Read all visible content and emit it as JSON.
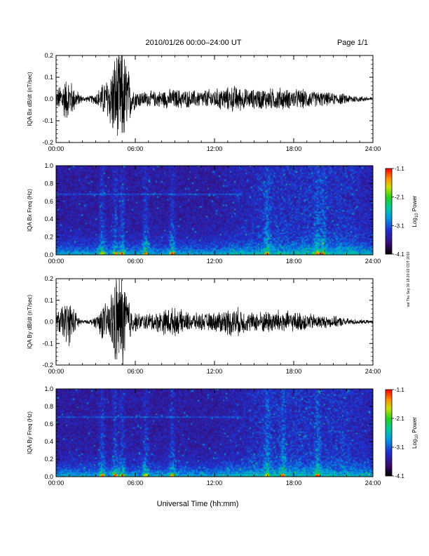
{
  "header": {
    "title": "2010/01/26  00:00–24:00 UT",
    "page": "Page 1/1"
  },
  "side_note": "sat Thu Sep 30 18:20:03 CDT 2010",
  "xlabel": "Universal Time (hh:mm)",
  "colorbar": {
    "label_main": "Log",
    "label_sub": "10",
    "label_tail": " Power",
    "ticks": [
      "-1.1",
      "-2.1",
      "-3.1",
      "-4.1"
    ],
    "range": [
      -4.1,
      -1.1
    ]
  },
  "chart_data": [
    {
      "type": "line",
      "ylabel": "IQA Bx dB/dt (nT/sec)",
      "x_ticks": [
        "00:00",
        "06:00",
        "12:00",
        "18:00",
        "24:00"
      ],
      "xlim": [
        0,
        24
      ],
      "y_ticks": [
        "0.2",
        "0.1",
        "0.0",
        "-0.1",
        "-0.2"
      ],
      "ylim": [
        -0.2,
        0.2
      ],
      "series": [
        {
          "x": [
            0,
            0.5,
            1,
            1.5,
            2,
            2.5,
            3,
            3.5,
            4,
            4.3,
            4.6,
            5,
            5.3,
            5.7,
            6,
            6.5,
            7,
            7.5,
            8,
            8.5,
            9,
            9.5,
            10,
            10.5,
            11,
            11.5,
            12,
            12.5,
            13,
            13.5,
            14,
            14.5,
            15,
            15.5,
            16,
            16.5,
            17,
            17.5,
            18,
            18.5,
            19,
            19.5,
            20,
            20.5,
            21,
            21.5,
            22,
            22.5,
            23,
            23.5,
            24
          ],
          "amplitude": [
            0.04,
            0.1,
            0.11,
            0.05,
            0.015,
            0.015,
            0.03,
            0.08,
            0.12,
            0.2,
            0.25,
            0.25,
            0.22,
            0.08,
            0.05,
            0.04,
            0.04,
            0.04,
            0.045,
            0.05,
            0.05,
            0.05,
            0.045,
            0.045,
            0.045,
            0.05,
            0.05,
            0.06,
            0.06,
            0.07,
            0.06,
            0.05,
            0.05,
            0.055,
            0.055,
            0.055,
            0.06,
            0.05,
            0.05,
            0.05,
            0.05,
            0.04,
            0.04,
            0.035,
            0.03,
            0.03,
            0.025,
            0.02,
            0.015,
            0.012,
            0.01
          ]
        }
      ]
    },
    {
      "type": "heatmap",
      "ylabel": "IQA Bx Freq (Hz)",
      "x_ticks": [
        "00:00",
        "06:00",
        "12:00",
        "18:00",
        "24:00"
      ],
      "xlim": [
        0,
        24
      ],
      "y_ticks": [
        "1.0",
        "0.8",
        "0.6",
        "0.4",
        "0.2",
        "0.0"
      ],
      "ylim": [
        0,
        1
      ],
      "features": {
        "low_freq_band_hz": 0.1,
        "constant_line_hz": 0.68,
        "constant_line_span_h": [
          0,
          14
        ],
        "bursts_h": [
          3.5,
          4.5,
          5.0,
          6.8,
          8.8,
          16.0,
          19.8,
          20.2
        ]
      }
    },
    {
      "type": "line",
      "ylabel": "IQA By dB/dt (nT/sec)",
      "x_ticks": [
        "00:00",
        "06:00",
        "12:00",
        "18:00",
        "24:00"
      ],
      "xlim": [
        0,
        24
      ],
      "y_ticks": [
        "0.2",
        "0.1",
        "0.0",
        "-0.1",
        "-0.2"
      ],
      "ylim": [
        -0.2,
        0.2
      ],
      "series": [
        {
          "x": [
            0,
            0.5,
            1,
            1.5,
            2,
            2.5,
            3,
            3.5,
            4,
            4.3,
            4.6,
            5,
            5.3,
            5.7,
            6,
            6.5,
            7,
            7.5,
            8,
            8.5,
            9,
            9.5,
            10,
            10.5,
            11,
            11.5,
            12,
            12.5,
            13,
            13.5,
            14,
            14.5,
            15,
            15.5,
            16,
            16.5,
            17,
            17.5,
            18,
            18.5,
            19,
            19.5,
            20,
            20.5,
            21,
            21.5,
            22,
            22.5,
            23,
            23.5,
            24
          ],
          "amplitude": [
            0.04,
            0.09,
            0.12,
            0.05,
            0.01,
            0.01,
            0.03,
            0.09,
            0.1,
            0.2,
            0.25,
            0.25,
            0.2,
            0.07,
            0.05,
            0.04,
            0.045,
            0.05,
            0.06,
            0.075,
            0.07,
            0.06,
            0.05,
            0.045,
            0.045,
            0.045,
            0.05,
            0.06,
            0.07,
            0.075,
            0.07,
            0.05,
            0.05,
            0.055,
            0.06,
            0.06,
            0.065,
            0.055,
            0.05,
            0.05,
            0.045,
            0.04,
            0.035,
            0.03,
            0.03,
            0.025,
            0.02,
            0.015,
            0.012,
            0.01,
            0.008
          ]
        }
      ]
    },
    {
      "type": "heatmap",
      "ylabel": "IQA By Freq (Hz)",
      "x_ticks": [
        "00:00",
        "06:00",
        "12:00",
        "18:00",
        "24:00"
      ],
      "xlim": [
        0,
        24
      ],
      "y_ticks": [
        "1.0",
        "0.8",
        "0.6",
        "0.4",
        "0.2",
        "0.0"
      ],
      "ylim": [
        0,
        1
      ],
      "features": {
        "low_freq_band_hz": 0.1,
        "constant_line_hz": 0.68,
        "constant_line_span_h": [
          0,
          14
        ],
        "bursts_h": [
          3.5,
          4.5,
          5.0,
          6.8,
          8.8,
          16.0,
          17.2,
          19.8
        ]
      }
    }
  ]
}
